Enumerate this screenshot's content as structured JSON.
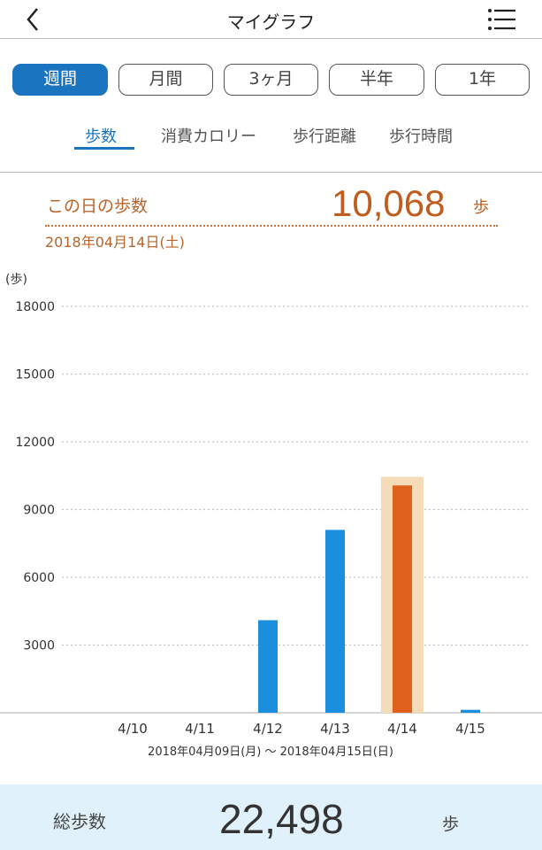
{
  "header": {
    "title": "マイグラフ",
    "back_icon": "chevron-left-icon",
    "menu_icon": "list-menu-icon"
  },
  "periods": [
    {
      "label": "週間",
      "active": true
    },
    {
      "label": "月間",
      "active": false
    },
    {
      "label": "3ヶ月",
      "active": false
    },
    {
      "label": "半年",
      "active": false
    },
    {
      "label": "1年",
      "active": false
    }
  ],
  "tabs": [
    {
      "label": "歩数",
      "active": true
    },
    {
      "label": "消費カロリー",
      "active": false
    },
    {
      "label": "歩行距離",
      "active": false
    },
    {
      "label": "歩行時間",
      "active": false
    }
  ],
  "day": {
    "label": "この日の歩数",
    "value": "10,068",
    "unit": "歩",
    "date": "2018年04月14日(土)"
  },
  "chart_data": {
    "type": "bar",
    "ylabel": "(歩)",
    "ylim": [
      0,
      18000
    ],
    "yticks": [
      18000,
      15000,
      12000,
      9000,
      6000,
      3000
    ],
    "grid": true,
    "categories": [
      "4/10",
      "4/11",
      "4/12",
      "4/13",
      "4/14",
      "4/15"
    ],
    "values": [
      0,
      0,
      4100,
      8100,
      10068,
      130
    ],
    "selected_category": "4/14",
    "colors": {
      "bar": "#1a8fde",
      "selected": "#e0611c",
      "highlight": "#f5dbb8"
    },
    "range_label": "2018年04月09日(月) 〜 2018年04月15日(日)"
  },
  "summary": {
    "label": "総歩数",
    "value": "22,498",
    "unit": "歩"
  }
}
